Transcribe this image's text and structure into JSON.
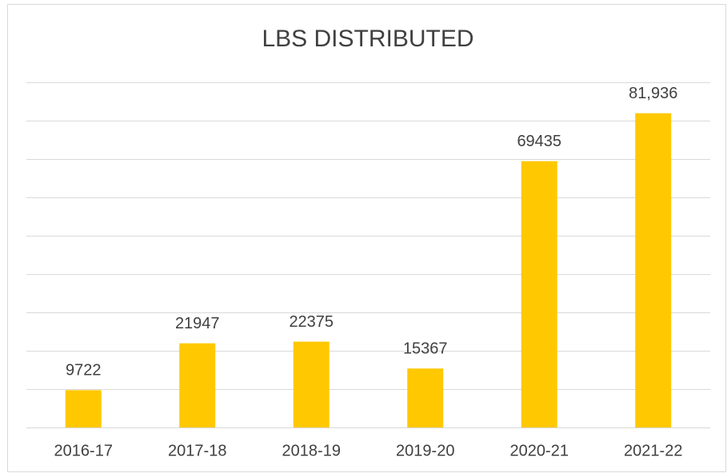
{
  "chart_data": {
    "type": "bar",
    "title": "LBS DISTRIBUTED",
    "categories": [
      "2016-17",
      "2017-18",
      "2018-19",
      "2019-20",
      "2020-21",
      "2021-22"
    ],
    "values": [
      9722,
      21947,
      22375,
      15367,
      69435,
      81936
    ],
    "value_labels": [
      "9722",
      "21947",
      "22375",
      "15367",
      "69435",
      "81,936"
    ],
    "color": "#ffc800",
    "ylim": [
      0,
      90000
    ],
    "yticks": [
      0,
      10000,
      20000,
      30000,
      40000,
      50000,
      60000,
      70000,
      80000,
      90000
    ],
    "grid": true
  }
}
